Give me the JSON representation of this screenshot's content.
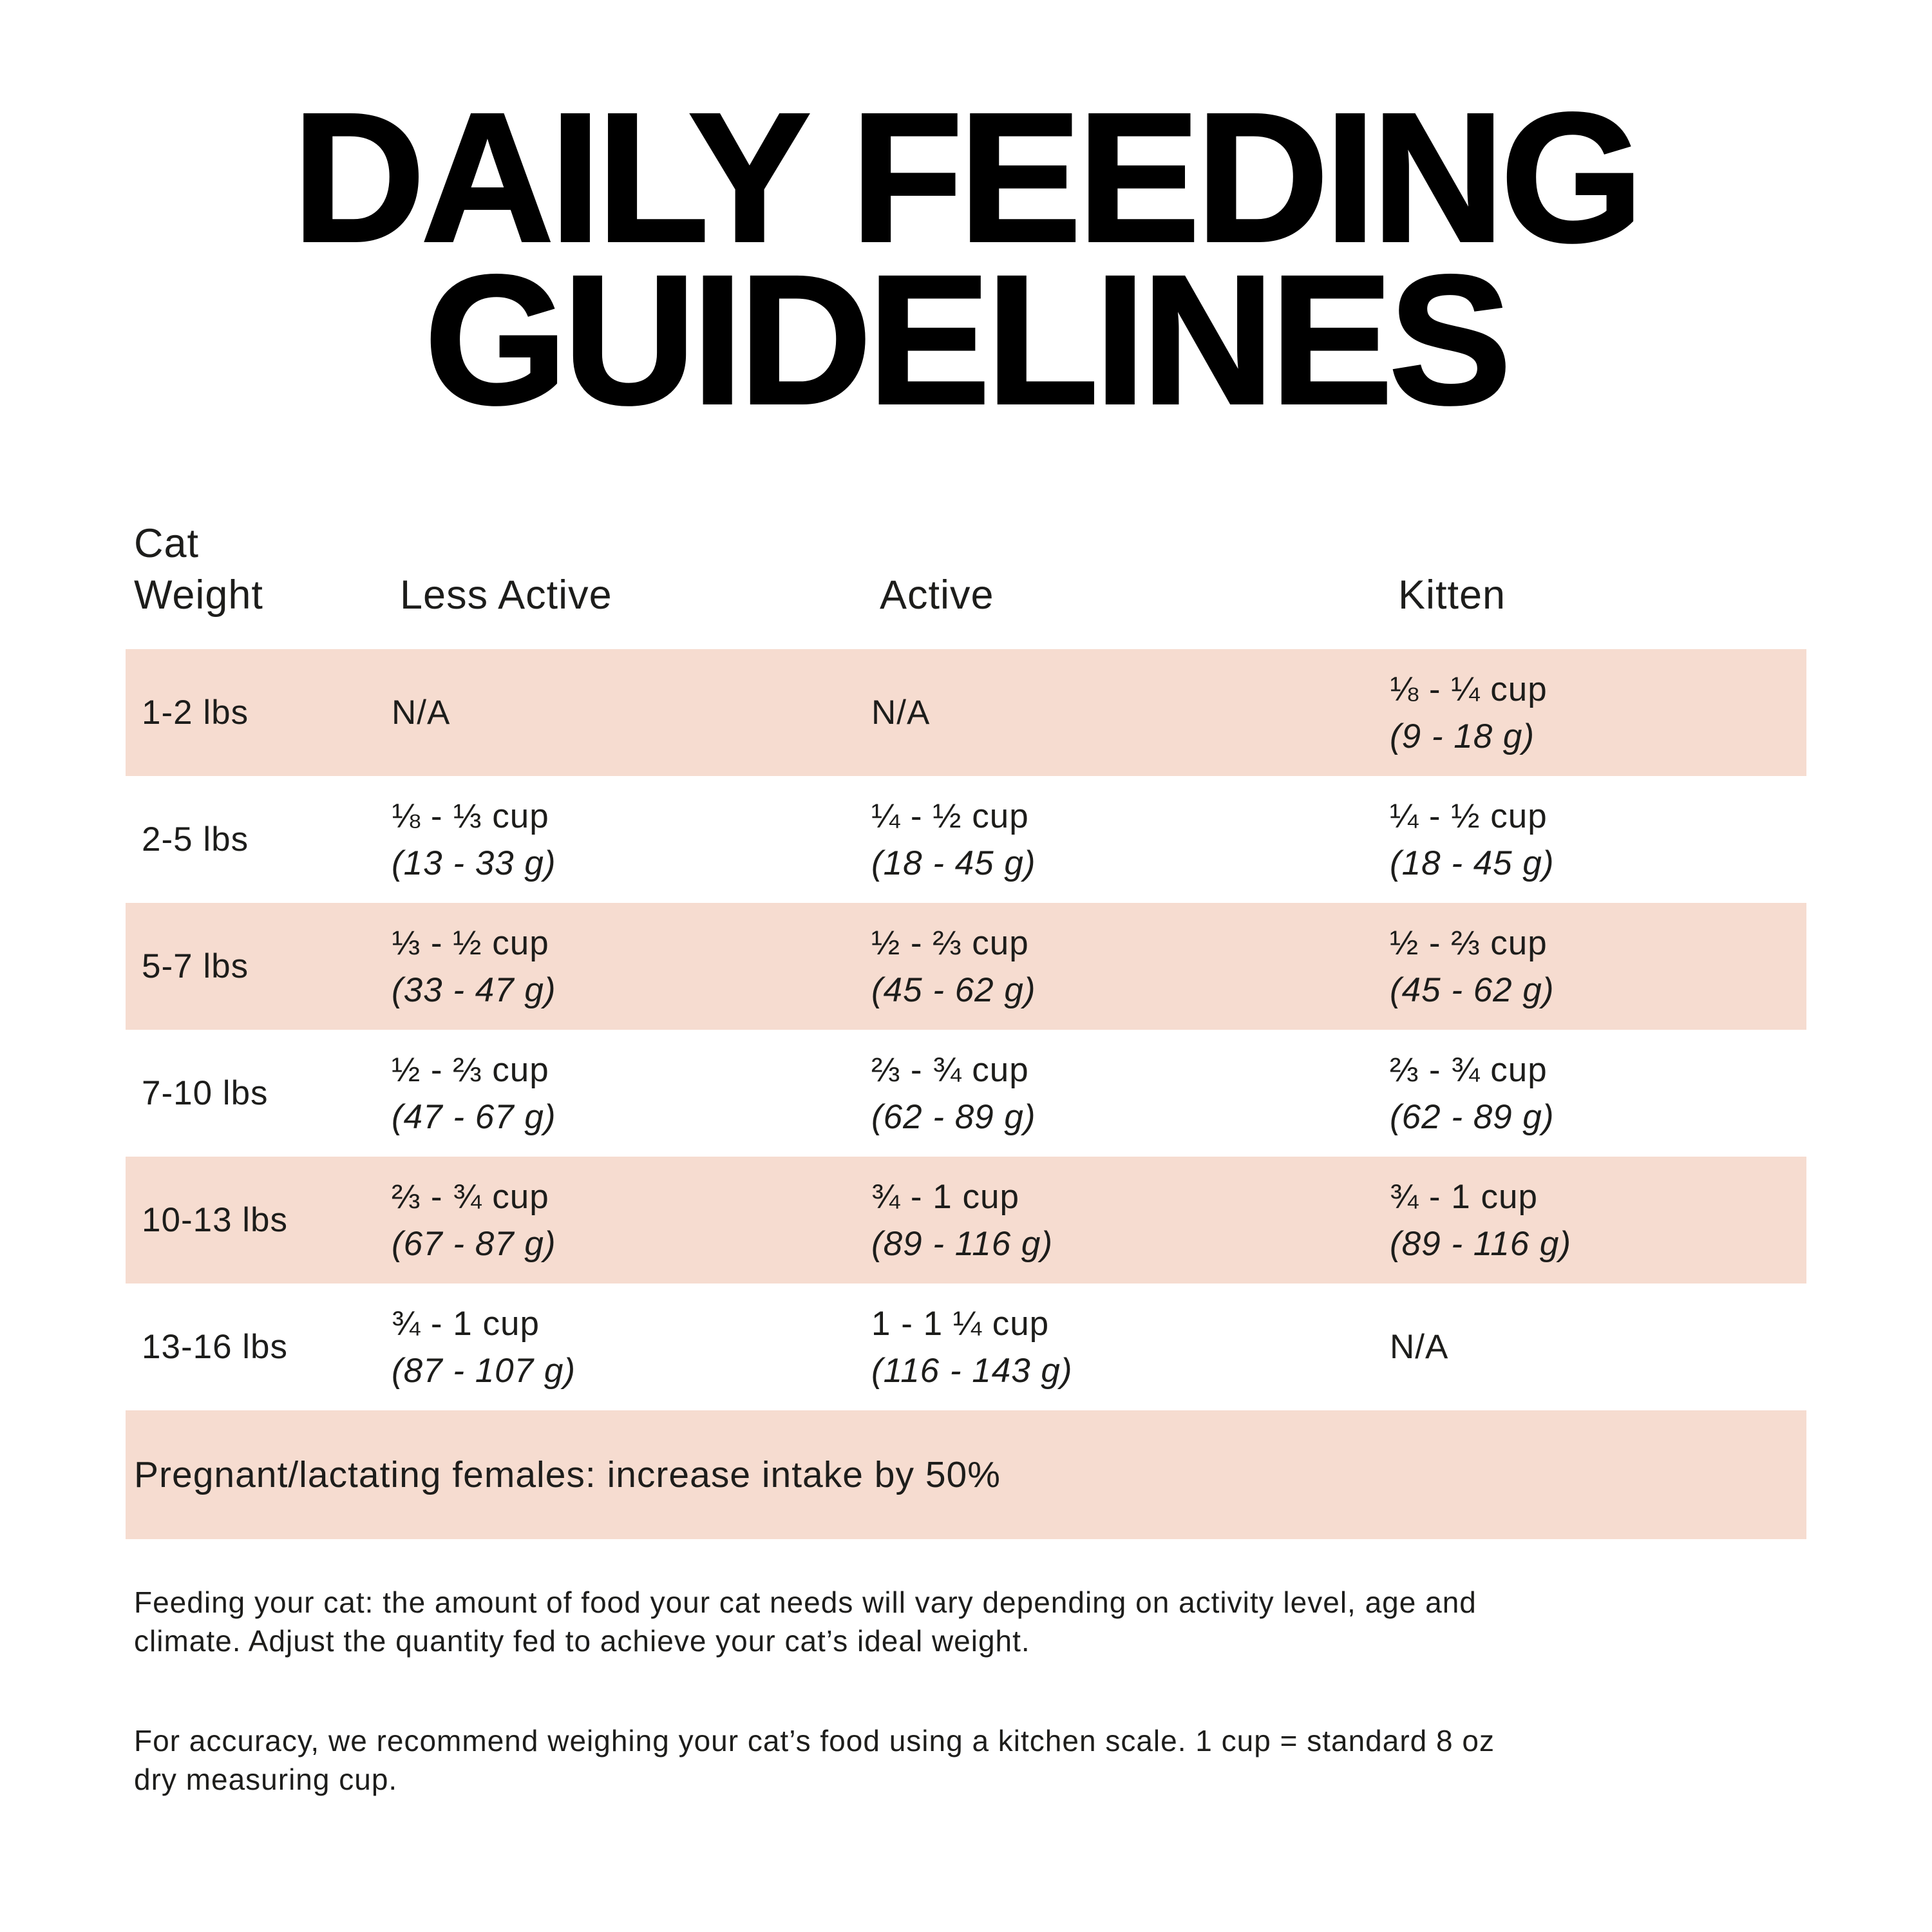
{
  "title": {
    "line1": "DAILY FEEDING",
    "line2": "GUIDELINES"
  },
  "table": {
    "headers": {
      "col1_line1": "Cat",
      "col1_line2": "Weight",
      "col2": "Less Active",
      "col3": "Active",
      "col4": "Kitten"
    },
    "rows": [
      {
        "weight": "1-2 lbs",
        "less_active": {
          "cups": "N/A",
          "grams": ""
        },
        "active": {
          "cups": "N/A",
          "grams": ""
        },
        "kitten": {
          "cups": "⅛ - ¼ cup",
          "grams": "(9 - 18 g)"
        }
      },
      {
        "weight": "2-5 lbs",
        "less_active": {
          "cups": "⅛ - ⅓ cup",
          "grams": "(13 - 33 g)"
        },
        "active": {
          "cups": "¼ - ½ cup",
          "grams": "(18 - 45 g)"
        },
        "kitten": {
          "cups": "¼ - ½ cup",
          "grams": "(18 - 45 g)"
        }
      },
      {
        "weight": "5-7 lbs",
        "less_active": {
          "cups": "⅓ - ½ cup",
          "grams": "(33 - 47 g)"
        },
        "active": {
          "cups": "½ - ⅔ cup",
          "grams": "(45 - 62 g)"
        },
        "kitten": {
          "cups": "½ - ⅔ cup",
          "grams": "(45 - 62 g)"
        }
      },
      {
        "weight": "7-10 lbs",
        "less_active": {
          "cups": "½ - ⅔ cup",
          "grams": "(47 - 67 g)"
        },
        "active": {
          "cups": "⅔ - ¾ cup",
          "grams": "(62 - 89 g)"
        },
        "kitten": {
          "cups": "⅔ - ¾ cup",
          "grams": "(62 - 89 g)"
        }
      },
      {
        "weight": "10-13 lbs",
        "less_active": {
          "cups": "⅔ - ¾ cup",
          "grams": "(67 - 87 g)"
        },
        "active": {
          "cups": "¾ - 1 cup",
          "grams": "(89 - 116 g)"
        },
        "kitten": {
          "cups": "¾ - 1 cup",
          "grams": "(89 - 116 g)"
        }
      },
      {
        "weight": "13-16 lbs",
        "less_active": {
          "cups": "¾ - 1 cup",
          "grams": "(87 - 107 g)"
        },
        "active": {
          "cups": "1 - 1 ¼ cup",
          "grams": "(116 - 143 g)"
        },
        "kitten": {
          "cups": "N/A",
          "grams": ""
        }
      }
    ]
  },
  "banner": "Pregnant/lactating females: increase intake by 50%",
  "footnotes": [
    [
      "Feeding your cat: the amount of food your cat needs will vary depending on activity level, age and",
      "climate. Adjust the quantity fed to achieve your cat’s ideal weight."
    ],
    [
      "For accuracy, we recommend weighing your cat’s food using a kitchen scale. 1 cup = standard 8 oz",
      "dry measuring cup."
    ]
  ],
  "colors": {
    "background": "#ffffff",
    "row_band": "#f6dcd0",
    "text": "#1d1d1b",
    "title": "#000000"
  }
}
